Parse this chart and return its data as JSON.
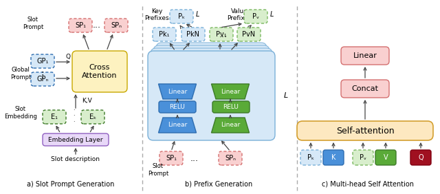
{
  "bg_color": "#ffffff",
  "section_a_label": "a) Slot Prompt Generation",
  "section_b_label": "b) Prefix Generation",
  "section_c_label": "c) Multi-head Self Attention",
  "colors": {
    "pink_fill": "#f9d0d0",
    "pink_edge": "#d47070",
    "blue_fill": "#4a90d9",
    "blue_edge": "#2e6db0",
    "blue_light_fill": "#d6e8f7",
    "blue_light_edge": "#7ab0d8",
    "green_fill": "#5aaa38",
    "green_edge": "#3d7a28",
    "green_light_fill": "#d8eecc",
    "green_light_edge": "#7ab860",
    "yellow_light_fill": "#fdf2c0",
    "yellow_edge": "#c8a800",
    "purple_light_fill": "#e8d8f8",
    "purple_edge": "#9060c0",
    "orange_fill": "#fde8c0",
    "orange_edge": "#d4a030",
    "red_fill": "#a01020",
    "red_edge": "#800010",
    "arrow_color": "#444444",
    "divider_color": "#aaaaaa"
  }
}
